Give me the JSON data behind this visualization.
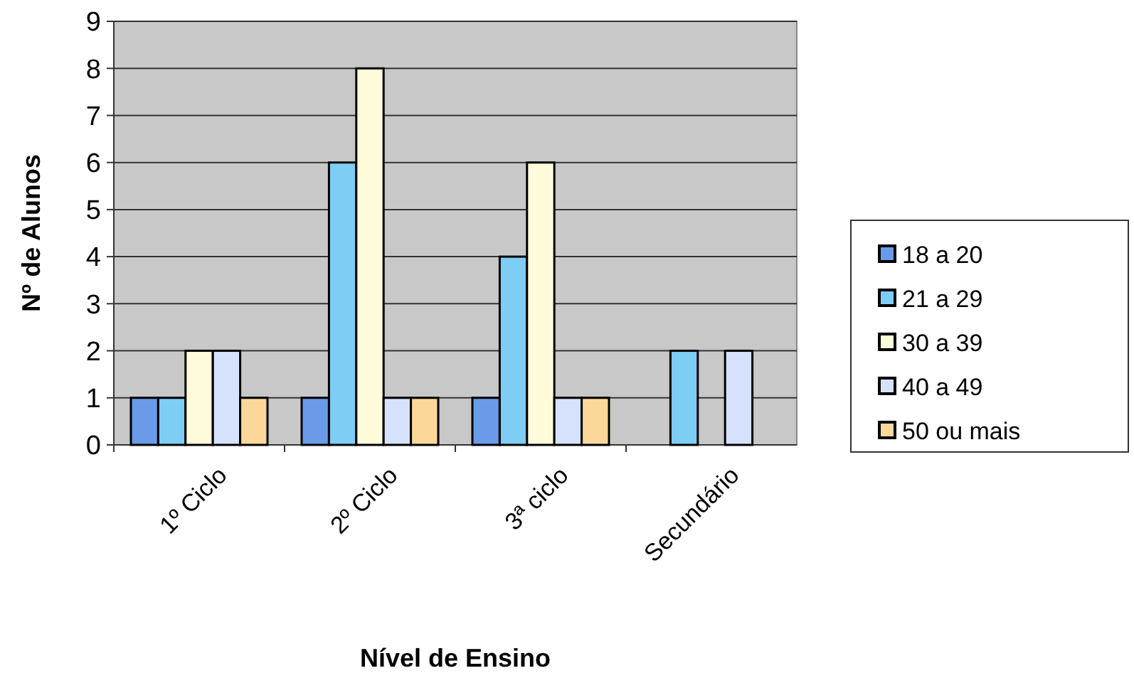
{
  "chart_data": {
    "type": "bar",
    "xlabel": "Nível de Ensino",
    "ylabel": "Nº de Alunos",
    "categories": [
      "1º Ciclo",
      "2º Ciclo",
      "3ª ciclo",
      "Secundário"
    ],
    "series": [
      {
        "name": "18 a 20",
        "color": "#6b9be8",
        "values": [
          1,
          1,
          1,
          0
        ]
      },
      {
        "name": "21 a 29",
        "color": "#7dcdf5",
        "values": [
          1,
          6,
          4,
          2
        ]
      },
      {
        "name": "30 a 39",
        "color": "#fdfbd9",
        "values": [
          2,
          8,
          6,
          0
        ]
      },
      {
        "name": "40 a 49",
        "color": "#d6e2fb",
        "values": [
          2,
          1,
          1,
          2
        ]
      },
      {
        "name": "50 ou mais",
        "color": "#fcd79a",
        "values": [
          1,
          1,
          1,
          0
        ]
      }
    ],
    "ylim": [
      0,
      9
    ],
    "yticks": [
      0,
      1,
      2,
      3,
      4,
      5,
      6,
      7,
      8,
      9
    ],
    "grid": "y",
    "legend": "right"
  }
}
